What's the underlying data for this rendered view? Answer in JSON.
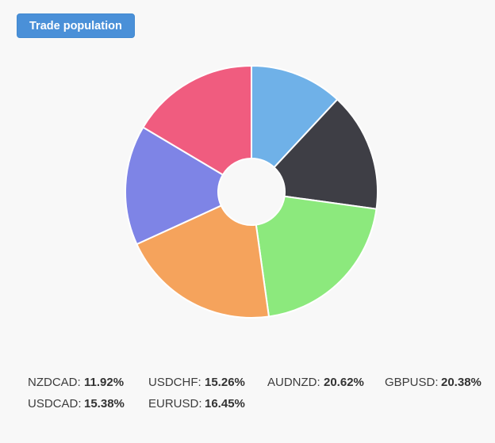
{
  "page": {
    "background_color": "#f8f8f8"
  },
  "header": {
    "button_label": "Trade population",
    "button_color": "#4a90d8",
    "button_text_color": "#ffffff"
  },
  "chart_data": {
    "type": "pie",
    "title": "Trade population",
    "donut": true,
    "start_angle_deg": 0,
    "direction": "clockwise",
    "inner_radius_ratio": 0.265,
    "categories": [
      "NZDCAD",
      "USDCHF",
      "AUDNZD",
      "GBPUSD",
      "USDCAD",
      "EURUSD"
    ],
    "values": [
      11.92,
      15.26,
      20.62,
      20.38,
      15.38,
      16.45
    ],
    "unit": "%",
    "colors": [
      "#6fb1e8",
      "#3e3e45",
      "#8ce97d",
      "#f5a35c",
      "#7e84e6",
      "#f05c7f"
    ],
    "slice_border_color": "#ffffff",
    "legend_position": "bottom"
  },
  "legend": {
    "items": [
      {
        "label": "NZDCAD:",
        "value": "11.92%"
      },
      {
        "label": "USDCHF:",
        "value": "15.26%"
      },
      {
        "label": "AUDNZD:",
        "value": "20.62%"
      },
      {
        "label": "GBPUSD:",
        "value": "20.38%"
      },
      {
        "label": "USDCAD:",
        "value": "15.38%"
      },
      {
        "label": "EURUSD:",
        "value": "16.45%"
      }
    ]
  }
}
